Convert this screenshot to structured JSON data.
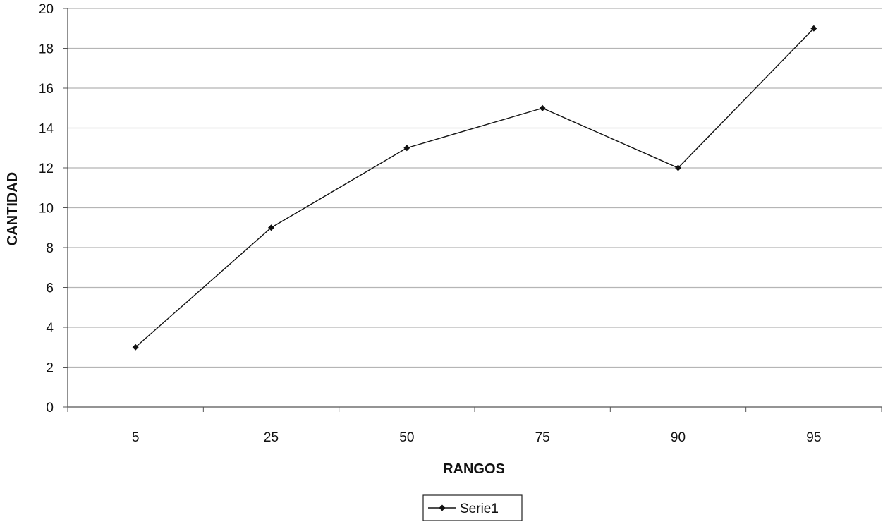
{
  "chart_data": {
    "type": "line",
    "categories": [
      "5",
      "25",
      "50",
      "75",
      "90",
      "95"
    ],
    "series": [
      {
        "name": "Serie1",
        "values": [
          3,
          9,
          13,
          15,
          12,
          19
        ]
      }
    ],
    "xlabel": "RANGOS",
    "ylabel": "CANTIDAD",
    "ylim": [
      0,
      20
    ],
    "yticks": [
      0,
      2,
      4,
      6,
      8,
      10,
      12,
      14,
      16,
      18,
      20
    ],
    "grid": "horizontal",
    "legend": "bottom",
    "colors": {
      "line": "#111111",
      "grid": "#b5b5b5",
      "axis": "#555555"
    }
  }
}
